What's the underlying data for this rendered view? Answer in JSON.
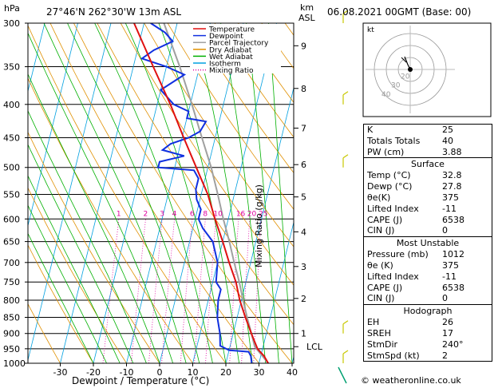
{
  "header": {
    "left_unit": "hPa",
    "location": "27°46'N  262°30'W  13m  ASL",
    "right_unit_km": "km",
    "right_unit_asl": "ASL",
    "datetime": "06.08.2021  00GMT  (Base: 00)"
  },
  "footer": "© weatheronline.co.uk",
  "colors": {
    "temperature": "#e01010",
    "dewpoint": "#1030e0",
    "parcel": "#a0a0a0",
    "dry_adiabat": "#e09000",
    "wet_adiabat": "#00b000",
    "isotherm": "#00a0e0",
    "mixing_ratio": "#e000a0"
  },
  "legend": [
    "Temperature",
    "Dewpoint",
    "Parcel Trajectory",
    "Dry Adiabat",
    "Wet Adiabat",
    "Isotherm",
    "Mixing Ratio"
  ],
  "chart_data": {
    "type": "skew-t",
    "xlabel": "Dewpoint / Temperature (°C)",
    "ylabel_right": "Mixing Ratio (g/kg)",
    "xlim": [
      -35,
      40
    ],
    "x_ticks": [
      -30,
      -20,
      -10,
      0,
      10,
      20,
      30,
      40
    ],
    "pressure_levels": [
      300,
      350,
      400,
      450,
      500,
      550,
      600,
      650,
      700,
      750,
      800,
      850,
      900,
      950,
      1000
    ],
    "km_ticks": [
      {
        "km": "1",
        "p": 900
      },
      {
        "km": "2",
        "p": 795
      },
      {
        "km": "3",
        "p": 710
      },
      {
        "km": "4",
        "p": 628
      },
      {
        "km": "5",
        "p": 555
      },
      {
        "km": "6",
        "p": 495
      },
      {
        "km": "7",
        "p": 435
      },
      {
        "km": "8",
        "p": 378
      },
      {
        "km": "9",
        "p": 325
      }
    ],
    "lcl": {
      "label": "LCL",
      "p": 943
    },
    "mixing_ratio_labels": [
      {
        "v": "1",
        "t": -20
      },
      {
        "v": "2",
        "t": -11
      },
      {
        "v": "3",
        "t": -5
      },
      {
        "v": "4",
        "t": -2
      },
      {
        "v": "6",
        "t": 3
      },
      {
        "v": "8",
        "t": 7
      },
      {
        "v": "10",
        "t": 10
      },
      {
        "v": "16",
        "t": 17
      },
      {
        "v": "20",
        "t": 20
      },
      {
        "v": "25",
        "t": 23
      }
    ],
    "temperature": [
      [
        1000,
        32.8
      ],
      [
        975,
        31
      ],
      [
        950,
        28.5
      ],
      [
        925,
        27
      ],
      [
        900,
        25.5
      ],
      [
        850,
        22.5
      ],
      [
        800,
        19.5
      ],
      [
        750,
        17
      ],
      [
        700,
        13.5
      ],
      [
        650,
        10
      ],
      [
        600,
        6
      ],
      [
        550,
        2
      ],
      [
        500,
        -3.5
      ],
      [
        450,
        -9.5
      ],
      [
        400,
        -16
      ],
      [
        350,
        -24
      ],
      [
        300,
        -33
      ]
    ],
    "dewpoint": [
      [
        1000,
        27.8
      ],
      [
        975,
        27
      ],
      [
        960,
        26
      ],
      [
        955,
        20
      ],
      [
        940,
        17
      ],
      [
        900,
        16
      ],
      [
        850,
        14
      ],
      [
        800,
        13
      ],
      [
        770,
        13
      ],
      [
        750,
        11
      ],
      [
        700,
        10
      ],
      [
        650,
        7
      ],
      [
        620,
        3
      ],
      [
        600,
        1
      ],
      [
        580,
        1
      ],
      [
        560,
        -1
      ],
      [
        540,
        -2
      ],
      [
        520,
        -2
      ],
      [
        505,
        -4
      ],
      [
        500,
        -15
      ],
      [
        490,
        -15
      ],
      [
        480,
        -8
      ],
      [
        470,
        -15
      ],
      [
        460,
        -13
      ],
      [
        450,
        -8
      ],
      [
        440,
        -5
      ],
      [
        425,
        -4
      ],
      [
        420,
        -10
      ],
      [
        410,
        -10
      ],
      [
        400,
        -15
      ],
      [
        380,
        -20
      ],
      [
        360,
        -14
      ],
      [
        350,
        -20
      ],
      [
        340,
        -28
      ],
      [
        330,
        -25
      ],
      [
        320,
        -20
      ],
      [
        310,
        -23
      ],
      [
        300,
        -28
      ]
    ],
    "parcel": [
      [
        1000,
        32.8
      ],
      [
        943,
        27.5
      ],
      [
        900,
        25.5
      ],
      [
        850,
        23
      ],
      [
        800,
        20.5
      ],
      [
        750,
        18
      ],
      [
        700,
        15
      ],
      [
        650,
        12
      ],
      [
        600,
        8.5
      ],
      [
        550,
        5
      ],
      [
        500,
        1
      ],
      [
        450,
        -4
      ],
      [
        400,
        -9.5
      ],
      [
        350,
        -16
      ],
      [
        300,
        -24
      ]
    ],
    "wind_barbs": [
      {
        "p": 300
      },
      {
        "p": 400
      },
      {
        "p": 500
      },
      {
        "p": 900
      },
      {
        "p": 1000
      }
    ],
    "hodograph": {
      "label": "kt",
      "rings": [
        "10",
        "20",
        "30",
        "40"
      ]
    }
  },
  "indices": {
    "top": [
      {
        "k": "K",
        "v": "25"
      },
      {
        "k": "Totals Totals",
        "v": "40"
      },
      {
        "k": "PW (cm)",
        "v": "3.88"
      }
    ],
    "surface": {
      "title": "Surface",
      "rows": [
        {
          "k": "Temp (°C)",
          "v": "32.8"
        },
        {
          "k": "Dewp (°C)",
          "v": "27.8"
        },
        {
          "k": "θe(K)",
          "v": "375"
        },
        {
          "k": "Lifted Index",
          "v": "-11"
        },
        {
          "k": "CAPE (J)",
          "v": "6538"
        },
        {
          "k": "CIN (J)",
          "v": "0"
        }
      ]
    },
    "most_unstable": {
      "title": "Most Unstable",
      "rows": [
        {
          "k": "Pressure (mb)",
          "v": "1012"
        },
        {
          "k": "θe (K)",
          "v": "375"
        },
        {
          "k": "Lifted Index",
          "v": "-11"
        },
        {
          "k": "CAPE (J)",
          "v": "6538"
        },
        {
          "k": "CIN (J)",
          "v": "0"
        }
      ]
    },
    "hodograph": {
      "title": "Hodograph",
      "rows": [
        {
          "k": "EH",
          "v": "26"
        },
        {
          "k": "SREH",
          "v": "17"
        },
        {
          "k": "StmDir",
          "v": "240°"
        },
        {
          "k": "StmSpd (kt)",
          "v": "2"
        }
      ]
    }
  }
}
